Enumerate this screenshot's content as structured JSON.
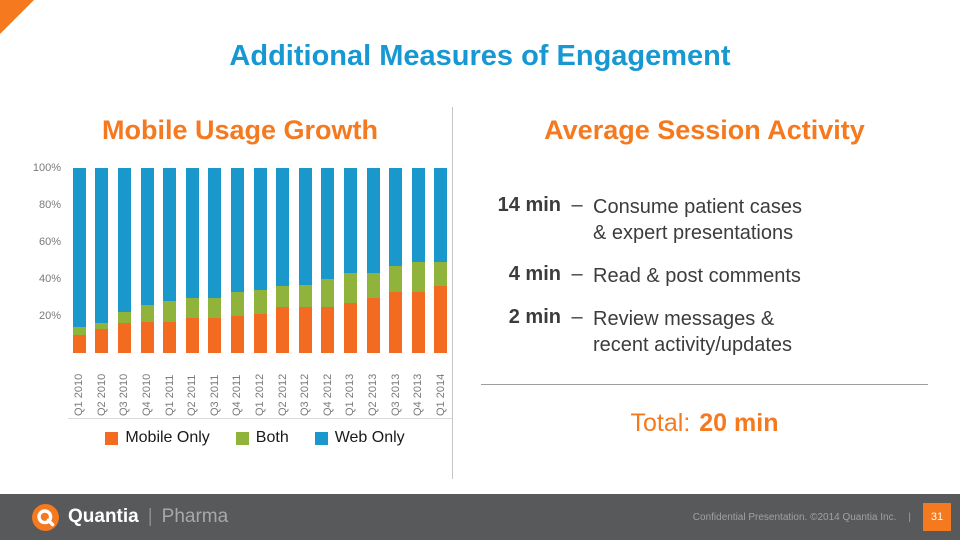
{
  "slide": {
    "title": "Additional Measures of Engagement",
    "accent_blue": "#1898D3",
    "accent_orange": "#F4791F"
  },
  "left": {
    "title": "Mobile Usage Growth"
  },
  "chart_data": {
    "type": "bar",
    "stacked": true,
    "unit": "percent",
    "title": "Mobile Usage Growth",
    "categories": [
      "Q1 2010",
      "Q2 2010",
      "Q3 2010",
      "Q4 2010",
      "Q1 2011",
      "Q2 2011",
      "Q3 2011",
      "Q4 2011",
      "Q1 2012",
      "Q2 2012",
      "Q3 2012",
      "Q4 2012",
      "Q1 2013",
      "Q2 2013",
      "Q3 2013",
      "Q4 2013",
      "Q1 2014"
    ],
    "series": [
      {
        "name": "Mobile Only",
        "color": "#F26B21",
        "values": [
          10,
          13,
          16,
          17,
          17,
          19,
          19,
          20,
          21,
          25,
          25,
          25,
          27,
          30,
          33,
          33,
          36
        ]
      },
      {
        "name": "Both",
        "color": "#8FB33B",
        "values": [
          4,
          3,
          6,
          9,
          11,
          11,
          11,
          13,
          13,
          11,
          12,
          15,
          16,
          13,
          14,
          16,
          13
        ]
      },
      {
        "name": "Web Only",
        "color": "#1B98CB",
        "values": [
          86,
          84,
          78,
          74,
          72,
          70,
          70,
          67,
          66,
          64,
          63,
          60,
          57,
          57,
          53,
          51,
          51
        ]
      }
    ],
    "yticks": [
      "100%",
      "80%",
      "60%",
      "40%",
      "20%"
    ],
    "ylim": [
      0,
      100
    ],
    "legend_position": "bottom"
  },
  "right": {
    "title": "Average Session Activity",
    "items": [
      {
        "time": "14 min",
        "dash": "–",
        "desc": "Consume patient cases\n& expert presentations"
      },
      {
        "time": "4 min",
        "dash": "–",
        "desc": "Read & post comments"
      },
      {
        "time": "2 min",
        "dash": "–",
        "desc": "Review messages &\nrecent activity/updates"
      }
    ],
    "total_label": "Total:",
    "total_value": "20 min"
  },
  "footer": {
    "brand": "Quantia",
    "brand_sub": "Pharma",
    "separator": "|",
    "confidential": "Confidential Presentation. ©2014 Quantia Inc.",
    "page_number": "31"
  }
}
